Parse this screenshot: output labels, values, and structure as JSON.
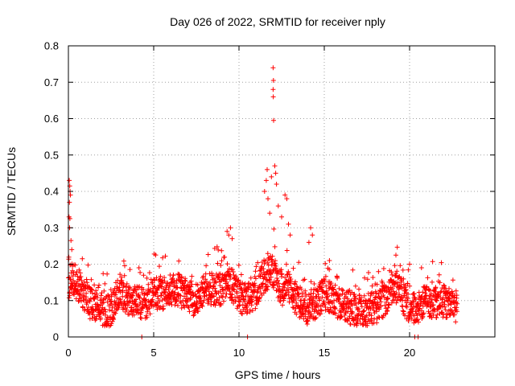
{
  "chart_data": {
    "type": "scatter",
    "title": "Day 026 of 2022, SRMTID for receiver nply",
    "xlabel": "GPS time / hours",
    "ylabel": "SRMTID / TECUs",
    "xlim": [
      0,
      25
    ],
    "ylim": [
      0,
      0.8
    ],
    "x_ticks": [
      0,
      5,
      10,
      15,
      20
    ],
    "x_tick_labels": [
      "0",
      "5",
      "10",
      "15",
      "20"
    ],
    "y_ticks": [
      0,
      0.1,
      0.2,
      0.3,
      0.4,
      0.5,
      0.6,
      0.7,
      0.8
    ],
    "y_tick_labels": [
      "0",
      "0.1",
      "0.2",
      "0.3",
      "0.4",
      "0.5",
      "0.6",
      "0.7",
      "0.8"
    ],
    "grid": true,
    "marker": "plus",
    "series_color": "#ff0000",
    "time_span": [
      0,
      22.8
    ],
    "baseline_profile": {
      "x": [
        0,
        0.3,
        0.6,
        1.0,
        1.5,
        2.0,
        2.5,
        3.0,
        3.5,
        4.0,
        4.5,
        5.0,
        5.5,
        6.0,
        6.5,
        7.0,
        7.5,
        8.0,
        8.5,
        9.0,
        9.5,
        10.0,
        10.5,
        11.0,
        11.5,
        12.0,
        12.5,
        13.0,
        13.5,
        14.0,
        14.5,
        15.0,
        15.5,
        16.0,
        16.5,
        17.0,
        17.5,
        18.0,
        18.5,
        19.0,
        19.5,
        20.0,
        20.5,
        21.0,
        21.5,
        22.0,
        22.5,
        22.8
      ],
      "y": [
        0.15,
        0.16,
        0.14,
        0.1,
        0.09,
        0.075,
        0.075,
        0.13,
        0.1,
        0.1,
        0.09,
        0.12,
        0.12,
        0.13,
        0.13,
        0.11,
        0.1,
        0.14,
        0.13,
        0.13,
        0.15,
        0.11,
        0.1,
        0.12,
        0.17,
        0.18,
        0.13,
        0.14,
        0.09,
        0.08,
        0.09,
        0.12,
        0.1,
        0.09,
        0.08,
        0.075,
        0.075,
        0.08,
        0.1,
        0.14,
        0.12,
        0.08,
        0.08,
        0.1,
        0.09,
        0.1,
        0.09,
        0.08
      ]
    },
    "feature_points": [
      {
        "x": 0.05,
        "y": 0.43
      },
      {
        "x": 0.08,
        "y": 0.415
      },
      {
        "x": 0.1,
        "y": 0.4
      },
      {
        "x": 0.12,
        "y": 0.39
      },
      {
        "x": 0.06,
        "y": 0.37
      },
      {
        "x": 0.04,
        "y": 0.33
      },
      {
        "x": 0.09,
        "y": 0.325
      },
      {
        "x": 0.07,
        "y": 0.3
      },
      {
        "x": 0.15,
        "y": 0.265
      },
      {
        "x": 0.2,
        "y": 0.24
      },
      {
        "x": 9.3,
        "y": 0.29
      },
      {
        "x": 9.4,
        "y": 0.28
      },
      {
        "x": 9.5,
        "y": 0.3
      },
      {
        "x": 9.6,
        "y": 0.27
      },
      {
        "x": 11.5,
        "y": 0.4
      },
      {
        "x": 11.6,
        "y": 0.43
      },
      {
        "x": 11.65,
        "y": 0.46
      },
      {
        "x": 11.7,
        "y": 0.38
      },
      {
        "x": 11.8,
        "y": 0.34
      },
      {
        "x": 11.9,
        "y": 0.44
      },
      {
        "x": 12.0,
        "y": 0.74
      },
      {
        "x": 12.02,
        "y": 0.705
      },
      {
        "x": 12.0,
        "y": 0.68
      },
      {
        "x": 12.01,
        "y": 0.66
      },
      {
        "x": 12.03,
        "y": 0.595
      },
      {
        "x": 12.1,
        "y": 0.47
      },
      {
        "x": 12.15,
        "y": 0.45
      },
      {
        "x": 12.2,
        "y": 0.42
      },
      {
        "x": 12.3,
        "y": 0.36
      },
      {
        "x": 12.5,
        "y": 0.33
      },
      {
        "x": 12.7,
        "y": 0.39
      },
      {
        "x": 12.8,
        "y": 0.38
      },
      {
        "x": 13.0,
        "y": 0.28
      },
      {
        "x": 12.9,
        "y": 0.31
      },
      {
        "x": 14.2,
        "y": 0.3
      },
      {
        "x": 14.3,
        "y": 0.28
      },
      {
        "x": 14.1,
        "y": 0.26
      },
      {
        "x": 15.3,
        "y": 0.21
      },
      {
        "x": 19.2,
        "y": 0.225
      },
      {
        "x": 20.0,
        "y": 0.2
      },
      {
        "x": 20.7,
        "y": 0.19
      },
      {
        "x": 4.3,
        "y": 0.0
      },
      {
        "x": 10.5,
        "y": 0.0
      },
      {
        "x": 20.3,
        "y": 0.0
      },
      {
        "x": 20.5,
        "y": 0.0
      }
    ],
    "seed": 26
  }
}
